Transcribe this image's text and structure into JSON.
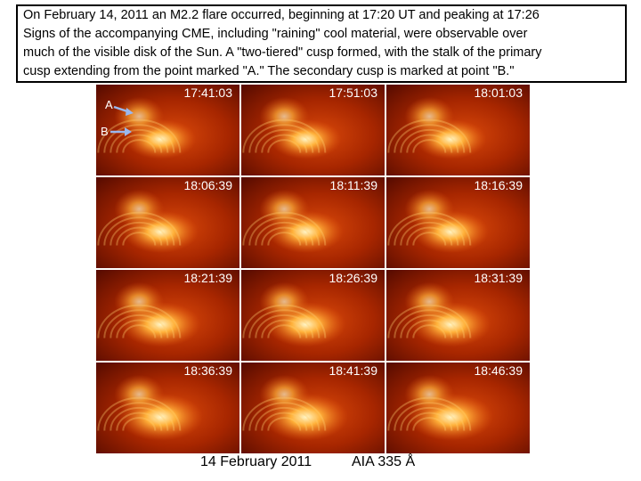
{
  "caption": {
    "lines": [
      "On February 14, 2011 an M2.2 flare occurred, beginning at 17:20 UT and peaking at 17:26",
      "Signs of the accompanying CME, including \"raining\" cool material, were observable over",
      "much of the visible disk of the Sun.  A \"two-tiered\" cusp formed, with the stalk of the primary",
      "cusp extending from the point marked \"A.\"  The secondary cusp is marked at point \"B.\""
    ]
  },
  "panels": [
    "17:41:03",
    "17:51:03",
    "18:01:03",
    "18:06:39",
    "18:11:39",
    "18:16:39",
    "18:21:39",
    "18:26:39",
    "18:31:39",
    "18:36:39",
    "18:41:39",
    "18:46:39"
  ],
  "markers": [
    "A",
    "B"
  ],
  "footer": {
    "date": "14 February 2011",
    "instrument": "AIA 335 Å"
  }
}
